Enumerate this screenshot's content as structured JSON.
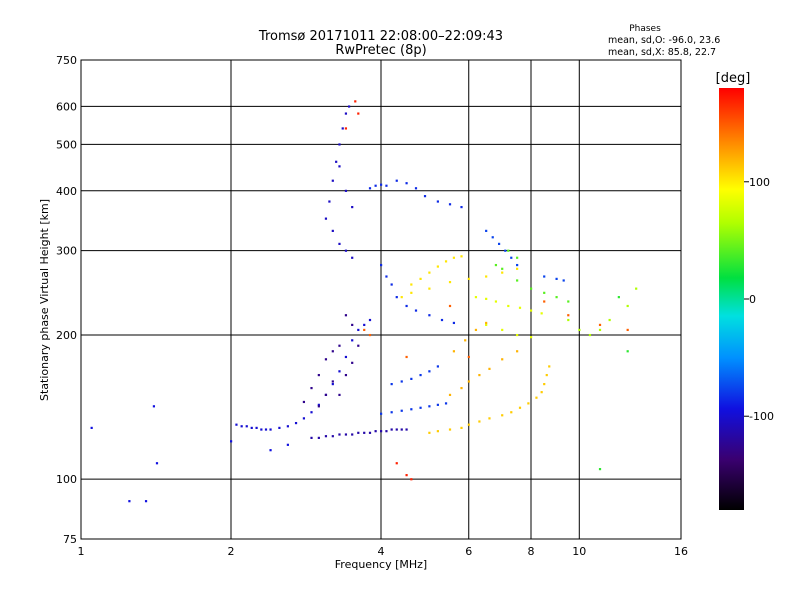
{
  "chart_data": {
    "type": "scatter",
    "title": "Tromsø 20171011 22:08:00–22:09:43",
    "subtitle": "RwPretec (8p)",
    "stats": {
      "heading": "Phases",
      "line1": "mean, sd,O: -96.0, 23.6",
      "line2": "mean, sd,X:  85.8, 22.7"
    },
    "xlabel": "Frequency [MHz]",
    "ylabel": "Stationary phase Virtual Height [km]",
    "x_scale": "log",
    "y_scale": "log",
    "xlim": [
      1,
      16
    ],
    "ylim": [
      75,
      750
    ],
    "xticks": [
      1,
      2,
      4,
      6,
      8,
      10,
      16
    ],
    "xtick_labels": [
      "1",
      "2",
      "4",
      "6",
      "8",
      "10",
      "16"
    ],
    "yticks": [
      75,
      100,
      200,
      300,
      400,
      500,
      600,
      750
    ],
    "ytick_labels": [
      "75",
      "100",
      "200",
      "300",
      "400",
      "500",
      "600",
      "750"
    ],
    "grid": true,
    "colorbar": {
      "label": "[deg]",
      "min": -180,
      "max": 180,
      "ticks": [
        100,
        0,
        -100
      ],
      "tick_labels": [
        "100",
        "0",
        "-100"
      ]
    },
    "series": [
      {
        "phase": -115,
        "points": [
          [
            2.05,
            130
          ],
          [
            2.1,
            129
          ],
          [
            2.15,
            129
          ],
          [
            2.2,
            128
          ],
          [
            2.25,
            128
          ],
          [
            2.3,
            127
          ],
          [
            2.35,
            127
          ],
          [
            2.4,
            127
          ],
          [
            2.5,
            128
          ],
          [
            2.6,
            129
          ],
          [
            2.7,
            131
          ],
          [
            2.8,
            134
          ],
          [
            2.9,
            138
          ],
          [
            3.0,
            143
          ],
          [
            3.1,
            150
          ],
          [
            3.2,
            158
          ],
          [
            3.3,
            168
          ],
          [
            3.4,
            180
          ],
          [
            3.5,
            195
          ],
          [
            3.6,
            205
          ],
          [
            3.7,
            210
          ],
          [
            3.8,
            215
          ]
        ]
      },
      {
        "phase": -130,
        "points": [
          [
            2.9,
            122
          ],
          [
            3.0,
            122
          ],
          [
            3.1,
            123
          ],
          [
            3.2,
            123
          ],
          [
            3.3,
            124
          ],
          [
            3.4,
            124
          ],
          [
            3.5,
            124
          ],
          [
            3.6,
            125
          ],
          [
            3.7,
            125
          ],
          [
            3.8,
            125
          ],
          [
            3.9,
            126
          ],
          [
            4.0,
            126
          ],
          [
            4.1,
            126
          ],
          [
            4.2,
            127
          ],
          [
            4.3,
            127
          ],
          [
            4.4,
            127
          ],
          [
            4.5,
            127
          ]
        ]
      },
      {
        "phase": -140,
        "points": [
          [
            2.8,
            145
          ],
          [
            2.9,
            155
          ],
          [
            3.0,
            165
          ],
          [
            3.1,
            178
          ],
          [
            3.2,
            185
          ],
          [
            3.3,
            190
          ],
          [
            3.2,
            160
          ],
          [
            3.1,
            150
          ],
          [
            3.0,
            142
          ],
          [
            3.3,
            150
          ],
          [
            3.4,
            165
          ],
          [
            3.5,
            175
          ],
          [
            3.6,
            190
          ],
          [
            3.5,
            210
          ],
          [
            3.4,
            220
          ]
        ]
      },
      {
        "phase": -120,
        "points": [
          [
            3.1,
            350
          ],
          [
            3.15,
            380
          ],
          [
            3.2,
            420
          ],
          [
            3.25,
            460
          ],
          [
            3.3,
            500
          ],
          [
            3.35,
            540
          ],
          [
            3.4,
            580
          ],
          [
            3.45,
            600
          ],
          [
            3.2,
            330
          ],
          [
            3.3,
            310
          ],
          [
            3.4,
            300
          ],
          [
            3.5,
            290
          ],
          [
            3.3,
            450
          ],
          [
            3.4,
            400
          ],
          [
            3.5,
            370
          ]
        ]
      },
      {
        "phase": -100,
        "points": [
          [
            3.8,
            405
          ],
          [
            3.9,
            410
          ],
          [
            4.0,
            412
          ],
          [
            4.1,
            410
          ],
          [
            4.3,
            420
          ],
          [
            4.5,
            415
          ],
          [
            4.7,
            405
          ],
          [
            4.9,
            390
          ],
          [
            5.2,
            380
          ],
          [
            5.5,
            375
          ],
          [
            5.8,
            370
          ],
          [
            4.0,
            280
          ],
          [
            4.1,
            265
          ],
          [
            4.2,
            255
          ],
          [
            4.3,
            240
          ],
          [
            4.5,
            230
          ],
          [
            4.7,
            225
          ],
          [
            5.0,
            220
          ],
          [
            5.3,
            215
          ],
          [
            5.6,
            212
          ]
        ]
      },
      {
        "phase": -95,
        "points": [
          [
            4.0,
            137
          ],
          [
            4.2,
            138
          ],
          [
            4.4,
            139
          ],
          [
            4.6,
            140
          ],
          [
            4.8,
            141
          ],
          [
            5.0,
            142
          ],
          [
            5.2,
            143
          ],
          [
            5.4,
            144
          ],
          [
            4.2,
            158
          ],
          [
            4.4,
            160
          ],
          [
            4.6,
            162
          ],
          [
            4.8,
            165
          ],
          [
            5.0,
            168
          ],
          [
            5.2,
            172
          ]
        ]
      },
      {
        "phase": 100,
        "points": [
          [
            4.6,
            255
          ],
          [
            4.8,
            262
          ],
          [
            5.0,
            270
          ],
          [
            5.2,
            278
          ],
          [
            5.4,
            285
          ],
          [
            5.6,
            290
          ],
          [
            5.8,
            292
          ],
          [
            4.4,
            240
          ],
          [
            4.6,
            245
          ],
          [
            5.0,
            250
          ],
          [
            5.5,
            258
          ],
          [
            6.0,
            262
          ],
          [
            6.5,
            265
          ],
          [
            7.0,
            270
          ],
          [
            7.5,
            275
          ]
        ]
      },
      {
        "phase": 80,
        "points": [
          [
            6.2,
            240
          ],
          [
            6.5,
            238
          ],
          [
            6.8,
            235
          ],
          [
            7.2,
            230
          ],
          [
            7.6,
            228
          ],
          [
            8.0,
            225
          ],
          [
            8.4,
            222
          ],
          [
            6.5,
            210
          ],
          [
            7.0,
            205
          ],
          [
            7.5,
            200
          ],
          [
            8.0,
            198
          ]
        ]
      },
      {
        "phase": 110,
        "points": [
          [
            5.0,
            125
          ],
          [
            5.2,
            126
          ],
          [
            5.5,
            127
          ],
          [
            5.8,
            128
          ],
          [
            6.0,
            130
          ],
          [
            6.3,
            132
          ],
          [
            6.6,
            134
          ],
          [
            7.0,
            136
          ],
          [
            7.3,
            138
          ],
          [
            7.6,
            141
          ],
          [
            7.9,
            144
          ],
          [
            8.2,
            148
          ],
          [
            8.4,
            152
          ],
          [
            8.5,
            158
          ],
          [
            8.6,
            165
          ],
          [
            8.7,
            172
          ]
        ]
      },
      {
        "phase": 120,
        "points": [
          [
            5.5,
            150
          ],
          [
            5.8,
            155
          ],
          [
            6.0,
            160
          ],
          [
            6.3,
            165
          ],
          [
            6.6,
            170
          ],
          [
            7.0,
            178
          ],
          [
            7.5,
            185
          ],
          [
            5.6,
            185
          ],
          [
            5.9,
            195
          ],
          [
            6.2,
            205
          ],
          [
            6.5,
            212
          ]
        ]
      },
      {
        "phase": 40,
        "points": [
          [
            6.8,
            280
          ],
          [
            7.0,
            275
          ],
          [
            7.5,
            260
          ],
          [
            8.0,
            250
          ],
          [
            8.5,
            245
          ],
          [
            9.0,
            240
          ],
          [
            9.5,
            235
          ],
          [
            7.2,
            300
          ],
          [
            7.5,
            290
          ]
        ]
      },
      {
        "phase": -90,
        "points": [
          [
            6.5,
            330
          ],
          [
            6.7,
            320
          ],
          [
            6.9,
            310
          ],
          [
            7.1,
            300
          ],
          [
            7.3,
            290
          ],
          [
            7.5,
            280
          ],
          [
            8.5,
            265
          ],
          [
            9.0,
            262
          ],
          [
            9.3,
            260
          ]
        ]
      },
      {
        "phase": 150,
        "points": [
          [
            3.7,
            205
          ],
          [
            3.8,
            200
          ],
          [
            4.5,
            180
          ],
          [
            5.5,
            230
          ],
          [
            6.0,
            180
          ],
          [
            8.5,
            235
          ],
          [
            9.5,
            220
          ],
          [
            11.0,
            210
          ],
          [
            12.5,
            205
          ]
        ]
      },
      {
        "phase": 60,
        "points": [
          [
            9.5,
            215
          ],
          [
            10.0,
            205
          ],
          [
            10.5,
            200
          ],
          [
            11.0,
            205
          ],
          [
            11.5,
            215
          ],
          [
            12.5,
            230
          ],
          [
            13.0,
            250
          ]
        ]
      },
      {
        "phase": 30,
        "points": [
          [
            11.0,
            105
          ],
          [
            12.0,
            240
          ],
          [
            12.5,
            185
          ]
        ]
      },
      {
        "phase": -110,
        "points": [
          [
            1.25,
            90
          ],
          [
            1.35,
            90
          ],
          [
            1.4,
            142
          ],
          [
            1.42,
            108
          ],
          [
            1.05,
            128
          ],
          [
            2.0,
            120
          ],
          [
            2.4,
            115
          ],
          [
            2.6,
            118
          ]
        ]
      },
      {
        "phase": 170,
        "points": [
          [
            3.55,
            615
          ],
          [
            3.6,
            580
          ],
          [
            3.4,
            540
          ],
          [
            4.5,
            102
          ],
          [
            4.6,
            100
          ],
          [
            4.3,
            108
          ]
        ]
      }
    ]
  }
}
